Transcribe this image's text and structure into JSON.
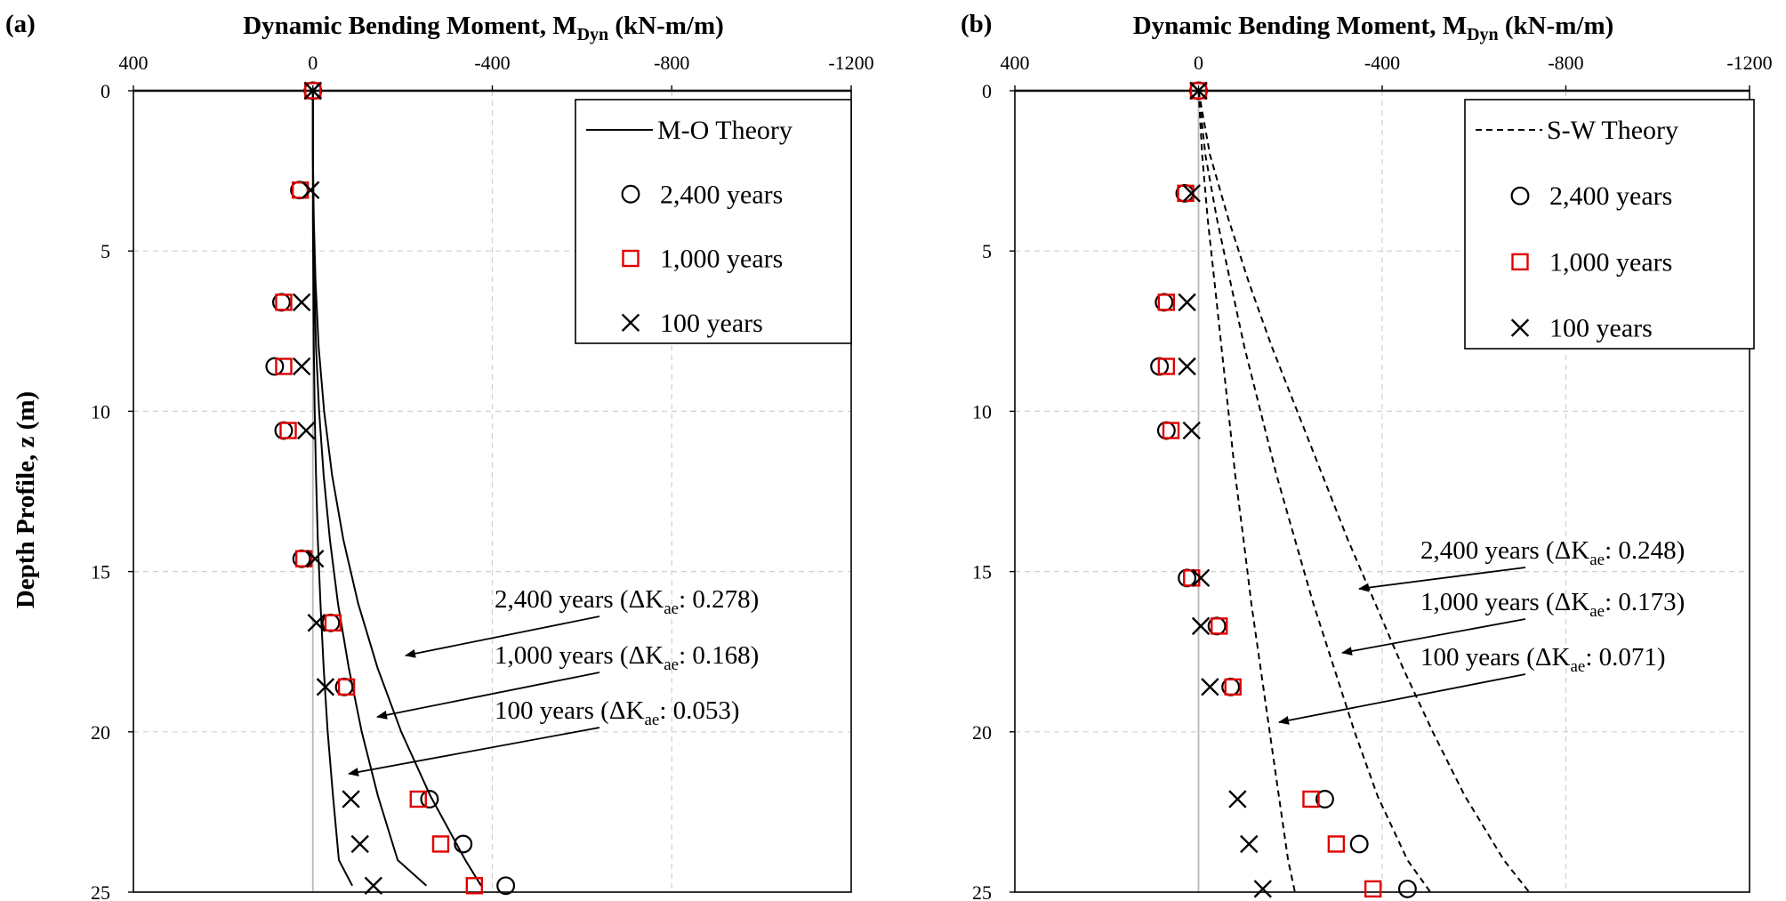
{
  "figure": {
    "ylabel": "Depth Profile, z (m)"
  },
  "chart_data": [
    {
      "type": "line+scatter",
      "panel_label": "(a)",
      "title": "Dynamic Bending Moment, M",
      "title_subscript": "Dyn",
      "title_units": " (kN-m/m)",
      "xlim": [
        400,
        -1200
      ],
      "ylim": [
        0,
        25
      ],
      "x_ticks": [
        "400",
        "0",
        "-400",
        "-800",
        "-1200"
      ],
      "y_ticks": [
        "0",
        "5",
        "10",
        "15",
        "20",
        "25"
      ],
      "grid": true,
      "legend_position": "top-right",
      "legend": [
        {
          "label": "M-O Theory",
          "marker": "line-solid"
        },
        {
          "label": "2,400 years",
          "marker": "circle"
        },
        {
          "label": "1,000 years",
          "marker": "square"
        },
        {
          "label": "100 years",
          "marker": "cross"
        }
      ],
      "theory_curves": [
        {
          "name": "2,400 years",
          "depth": [
            0,
            2,
            4,
            6,
            8,
            10,
            12,
            14,
            16,
            18,
            20,
            22,
            24,
            24.8
          ],
          "moment": [
            0,
            0,
            -2,
            -6,
            -13,
            -25,
            -43,
            -68,
            -101,
            -144,
            -197,
            -262,
            -340,
            -375
          ]
        },
        {
          "name": "1,000 years",
          "depth": [
            0,
            2,
            4,
            6,
            8,
            10,
            12,
            14,
            16,
            18,
            20,
            22,
            24,
            24.8
          ],
          "moment": [
            0,
            0,
            -1,
            -3,
            -7,
            -14,
            -24,
            -38,
            -56,
            -80,
            -109,
            -145,
            -189,
            -253
          ]
        },
        {
          "name": "100 years",
          "depth": [
            0,
            2,
            4,
            6,
            8,
            10,
            12,
            14,
            16,
            18,
            20,
            22,
            24,
            24.8
          ],
          "moment": [
            0,
            0,
            0,
            -1,
            -2,
            -4,
            -7,
            -11,
            -17,
            -24,
            -33,
            -45,
            -58,
            -88
          ]
        }
      ],
      "series": [
        {
          "name": "2,400 years",
          "marker": "circle",
          "depth": [
            0,
            3.1,
            6.6,
            8.6,
            10.6,
            14.6,
            16.6,
            18.6,
            22.1,
            23.5,
            24.8
          ],
          "moment": [
            0,
            30,
            70,
            85,
            65,
            25,
            -40,
            -70,
            -260,
            -335,
            -430
          ]
        },
        {
          "name": "1,000 years",
          "marker": "square",
          "depth": [
            0,
            3.1,
            6.6,
            8.6,
            10.6,
            14.6,
            16.6,
            18.6,
            22.1,
            23.5,
            24.8
          ],
          "moment": [
            0,
            28,
            65,
            65,
            55,
            20,
            -45,
            -75,
            -235,
            -285,
            -360
          ]
        },
        {
          "name": "100 years",
          "marker": "cross",
          "depth": [
            0,
            3.1,
            6.6,
            8.6,
            10.6,
            14.6,
            16.6,
            18.6,
            22.1,
            23.5,
            24.8
          ],
          "moment": [
            0,
            5,
            25,
            25,
            15,
            -5,
            -8,
            -28,
            -85,
            -105,
            -135
          ]
        }
      ],
      "annotations": [
        {
          "text": "2,400 years (ΔK",
          "sub": "ae",
          "tail": ": 0.278)",
          "target": "2,400 years"
        },
        {
          "text": "1,000 years (ΔK",
          "sub": "ae",
          "tail": ": 0.168)",
          "target": "1,000 years"
        },
        {
          "text": "100 years (ΔK",
          "sub": "ae",
          "tail": ": 0.053)",
          "target": "100 years"
        }
      ]
    },
    {
      "type": "line+scatter",
      "panel_label": "(b)",
      "title": "Dynamic Bending Moment, M",
      "title_subscript": "Dyn",
      "title_units": " (kN-m/m)",
      "xlim": [
        400,
        -1200
      ],
      "ylim": [
        0,
        25
      ],
      "x_ticks": [
        "400",
        "0",
        "-400",
        "-800",
        "-1200"
      ],
      "y_ticks": [
        "0",
        "5",
        "10",
        "15",
        "20",
        "25"
      ],
      "grid": true,
      "legend_position": "top-right",
      "legend": [
        {
          "label": "S-W Theory",
          "marker": "line-dashed"
        },
        {
          "label": "2,400 years",
          "marker": "circle"
        },
        {
          "label": "1,000 years",
          "marker": "square"
        },
        {
          "label": "100 years",
          "marker": "cross"
        }
      ],
      "theory_curves": [
        {
          "name": "2,400 years",
          "depth": [
            0,
            2,
            4,
            6,
            8,
            10,
            12,
            14,
            16,
            18,
            20,
            22,
            24,
            25
          ],
          "moment": [
            0,
            -25,
            -65,
            -110,
            -160,
            -215,
            -270,
            -325,
            -385,
            -445,
            -510,
            -580,
            -665,
            -720
          ]
        },
        {
          "name": "1,000 years",
          "depth": [
            0,
            2,
            4,
            6,
            8,
            10,
            12,
            14,
            16,
            18,
            20,
            22,
            24,
            25
          ],
          "moment": [
            0,
            -15,
            -40,
            -70,
            -100,
            -135,
            -170,
            -210,
            -250,
            -295,
            -340,
            -390,
            -455,
            -505
          ]
        },
        {
          "name": "100 years",
          "depth": [
            0,
            2,
            4,
            6,
            8,
            10,
            12,
            14,
            16,
            18,
            20,
            22,
            24,
            25
          ],
          "moment": [
            0,
            -8,
            -20,
            -35,
            -50,
            -65,
            -80,
            -98,
            -115,
            -135,
            -155,
            -175,
            -195,
            -210
          ]
        }
      ],
      "series": [
        {
          "name": "2,400 years",
          "marker": "circle",
          "depth": [
            0,
            3.2,
            6.6,
            8.6,
            10.6,
            15.2,
            16.7,
            18.6,
            22.1,
            23.5,
            24.9
          ],
          "moment": [
            0,
            30,
            75,
            85,
            70,
            25,
            -40,
            -70,
            -275,
            -350,
            -455
          ]
        },
        {
          "name": "1,000 years",
          "marker": "square",
          "depth": [
            0,
            3.2,
            6.6,
            8.6,
            10.6,
            15.2,
            16.7,
            18.6,
            22.1,
            23.5,
            24.9
          ],
          "moment": [
            0,
            28,
            70,
            70,
            60,
            15,
            -45,
            -75,
            -245,
            -300,
            -380
          ]
        },
        {
          "name": "100 years",
          "marker": "cross",
          "depth": [
            0,
            3.2,
            6.6,
            8.6,
            10.6,
            15.2,
            16.7,
            18.6,
            22.1,
            23.5,
            24.9
          ],
          "moment": [
            0,
            15,
            25,
            25,
            15,
            -5,
            -5,
            -25,
            -85,
            -110,
            -140
          ]
        }
      ],
      "annotations": [
        {
          "text": "2,400 years (ΔK",
          "sub": "ae",
          "tail": ": 0.248)",
          "target": "2,400 years"
        },
        {
          "text": "1,000 years (ΔK",
          "sub": "ae",
          "tail": ": 0.173)",
          "target": "1,000 years"
        },
        {
          "text": "100 years (ΔK",
          "sub": "ae",
          "tail": ": 0.071)",
          "target": "100 years"
        }
      ]
    }
  ],
  "colors": {
    "axis": "#000000",
    "grid": "#d0d0d0",
    "zero_line": "#b8b8b8",
    "circle": "#000000",
    "square": "#e00000",
    "cross": "#000000",
    "theory": "#000000"
  }
}
